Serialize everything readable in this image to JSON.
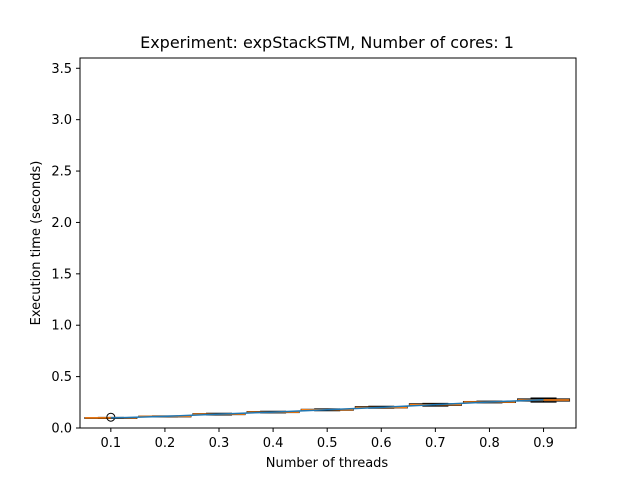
{
  "chart_data": {
    "type": "box+line",
    "title": "Experiment: expStackSTM, Number of cores: 1",
    "xlabel": "Number of threads",
    "ylabel": "Execution time (seconds)",
    "categories": [
      "0.1",
      "0.2",
      "0.3",
      "0.4",
      "0.5",
      "0.6",
      "0.7",
      "0.8",
      "0.9"
    ],
    "ylim": [
      0,
      3.6
    ],
    "yticks": [
      "0.0",
      "0.5",
      "1.0",
      "1.5",
      "2.0",
      "2.5",
      "3.0",
      "3.5"
    ],
    "ytick_values": [
      0,
      0.5,
      1.0,
      1.5,
      2.0,
      2.5,
      3.0,
      3.5
    ],
    "grid": false,
    "box_color": "#000000",
    "median_color": "#ff7f0e",
    "line_color": "#1f77b4",
    "boxes": [
      {
        "q1": 0.095,
        "median": 0.098,
        "q3": 0.101,
        "whisker_low": 0.093,
        "whisker_high": 0.103,
        "outliers": [
          0.105
        ]
      },
      {
        "q1": 0.11,
        "median": 0.113,
        "q3": 0.116,
        "whisker_low": 0.108,
        "whisker_high": 0.118,
        "outliers": []
      },
      {
        "q1": 0.13,
        "median": 0.135,
        "q3": 0.14,
        "whisker_low": 0.127,
        "whisker_high": 0.143,
        "outliers": []
      },
      {
        "q1": 0.15,
        "median": 0.155,
        "q3": 0.16,
        "whisker_low": 0.147,
        "whisker_high": 0.163,
        "outliers": []
      },
      {
        "q1": 0.172,
        "median": 0.177,
        "q3": 0.182,
        "whisker_low": 0.168,
        "whisker_high": 0.186,
        "outliers": []
      },
      {
        "q1": 0.195,
        "median": 0.2,
        "q3": 0.208,
        "whisker_low": 0.192,
        "whisker_high": 0.212,
        "outliers": []
      },
      {
        "q1": 0.22,
        "median": 0.228,
        "q3": 0.236,
        "whisker_low": 0.213,
        "whisker_high": 0.24,
        "outliers": []
      },
      {
        "q1": 0.248,
        "median": 0.253,
        "q3": 0.258,
        "whisker_low": 0.245,
        "whisker_high": 0.261,
        "outliers": []
      },
      {
        "q1": 0.262,
        "median": 0.272,
        "q3": 0.283,
        "whisker_low": 0.252,
        "whisker_high": 0.292,
        "outliers": []
      }
    ],
    "mean_line": [
      0.098,
      0.113,
      0.135,
      0.155,
      0.177,
      0.201,
      0.227,
      0.253,
      0.275
    ]
  }
}
